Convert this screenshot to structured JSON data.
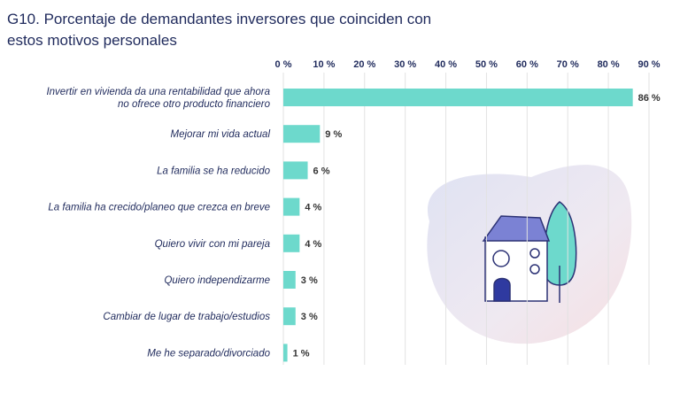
{
  "title": "G10. Porcentaje de demandantes inversores que coinciden con estos motivos personales",
  "colors": {
    "bar": "#6dd9cc",
    "text": "#1f2a5c",
    "grid": "#e2e2e2"
  },
  "chart_data": {
    "type": "bar",
    "orientation": "horizontal",
    "title": "G10. Porcentaje de demandantes inversores que coinciden con estos motivos personales",
    "xlim": [
      0,
      90
    ],
    "ticks": [
      "0 %",
      "10 %",
      "20 %",
      "30 %",
      "40 %",
      "50 %",
      "60 %",
      "70 %",
      "80 %",
      "90 %"
    ],
    "grid": true,
    "categories": [
      [
        "Invertir en vivienda da una rentabilidad que ahora",
        "no ofrece otro producto financiero"
      ],
      [
        "Mejorar mi vida actual"
      ],
      [
        "La familia se ha reducido"
      ],
      [
        "La familia ha crecido/planeo que crezca en breve"
      ],
      [
        "Quiero vivir con mi pareja"
      ],
      [
        "Quiero independizarme"
      ],
      [
        "Cambiar de lugar de trabajo/estudios"
      ],
      [
        "Me he separado/divorciado"
      ]
    ],
    "values": [
      86,
      9,
      6,
      4,
      4,
      3,
      3,
      1
    ],
    "value_labels": [
      "86 %",
      "9 %",
      "6 %",
      "4 %",
      "4 %",
      "3 %",
      "3 %",
      "1 %"
    ]
  }
}
